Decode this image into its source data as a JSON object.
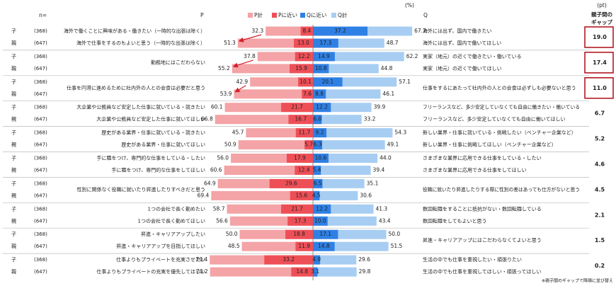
{
  "header": {
    "n_label": "n=",
    "p_label": "P",
    "unit": "(%)",
    "q_label": "Q",
    "gap_unit": "(pt)",
    "gap_label": [
      "親子間の",
      "ギャップ"
    ]
  },
  "legend": [
    {
      "name": "P計",
      "color": "#f4a3a6"
    },
    {
      "name": "Pに近い",
      "color": "#ee4f57"
    },
    {
      "name": "Qに近い",
      "color": "#2f80e4"
    },
    {
      "name": "Q計",
      "color": "#a7cdf2"
    }
  ],
  "groups": [
    {
      "gap": "19.0",
      "boxed": true,
      "rows": [
        {
          "role": "子",
          "n": "(368)",
          "p": "海外で働くことに興味がある・働きたい（一時的な出張は除く）",
          "q": "海外には出ず、国内で働きたい",
          "values": [
            32.3,
            8.4,
            37.2,
            67.7
          ]
        },
        {
          "role": "親",
          "n": "(647)",
          "p": "海外で仕事をするのもよいと思う（一時的な出張は除く）",
          "q": "海外には出ず、国内で働いてほしい",
          "values": [
            51.3,
            13,
            17.3,
            48.7
          ],
          "value_labels": [
            "51.3",
            "13.0",
            "17.3",
            "48.7"
          ]
        }
      ]
    },
    {
      "gap": "17.4",
      "boxed": true,
      "p": "勤務地にはこだわらない",
      "rows": [
        {
          "role": "子",
          "n": "(368)",
          "q": "実家（地元）の近くで働きたい・働いている",
          "values": [
            37.8,
            12.2,
            14.9,
            62.2
          ]
        },
        {
          "role": "親",
          "n": "(647)",
          "q": "実家（地元）の近くで働いてほしい",
          "values": [
            55.2,
            15.9,
            10.8,
            44.8
          ]
        }
      ]
    },
    {
      "gap": "11.0",
      "boxed": true,
      "p": "仕事を円滑に進めるために社内外の人との会食は必要だと思う",
      "q": "仕事をするにあたって社内外の人との会食は必ずしも必要ないと思う",
      "rows": [
        {
          "role": "子",
          "n": "(368)",
          "values": [
            42.9,
            10.1,
            20.1,
            57.1
          ]
        },
        {
          "role": "親",
          "n": "(647)",
          "values": [
            53.9,
            7.6,
            8.8,
            46.1
          ]
        }
      ]
    },
    {
      "gap": "6.7",
      "boxed": false,
      "rows": [
        {
          "role": "子",
          "n": "(368)",
          "p": "大企業や公務員など安定した仕事に就いている・就きたい",
          "q": "フリーランスなど、多少安定していなくても自由に働きたい・働いている",
          "values": [
            60.1,
            21.7,
            12.2,
            39.9
          ]
        },
        {
          "role": "親",
          "n": "(647)",
          "p": "大企業や公務員など安定した仕事に就いてほしい",
          "q": "フリーランスなど、多少安定していなくても自由に働いてほしい",
          "values": [
            66.8,
            16.7,
            6,
            33.2
          ],
          "value_labels": [
            "66.8",
            "16.7",
            "6.0",
            "33.2"
          ]
        }
      ]
    },
    {
      "gap": "5.2",
      "boxed": false,
      "rows": [
        {
          "role": "子",
          "n": "(368)",
          "p": "歴史がある業界・仕事に就いている・就きたい",
          "q": "新しい業界・仕事に就いている・挑戦したい（ベンチャー企業など）",
          "values": [
            45.7,
            11.7,
            9.2,
            54.3
          ]
        },
        {
          "role": "親",
          "n": "(647)",
          "p": "歴史がある業界・仕事に就いてほしい",
          "q": "新しい業界・仕事に挑戦してほしい（ベンチャー企業など）",
          "values": [
            50.9,
            5.7,
            6.3,
            49.1
          ]
        }
      ]
    },
    {
      "gap": "4.6",
      "boxed": false,
      "rows": [
        {
          "role": "子",
          "n": "(368)",
          "p": "手に職をつけ、専門的な仕事をしている・したい",
          "q": "さまざまな業界に応用できる仕事をしている・したい",
          "values": [
            56,
            17.9,
            10.6,
            44
          ],
          "value_labels": [
            "56.0",
            "17.9",
            "10.6",
            "44.0"
          ]
        },
        {
          "role": "親",
          "n": "(647)",
          "p": "手に職をつけ、専門的な仕事をしてほしい",
          "q": "さまざまな業界に応用できる仕事をしてほしい",
          "values": [
            60.6,
            12.4,
            5.4,
            39.4
          ]
        }
      ]
    },
    {
      "gap": "4.5",
      "boxed": false,
      "p": "性別に関係なく役職に就いたり昇進したりすべきだと思う",
      "q": "役職に就いたり昇進したりする際に性別の差はあっても仕方がないと思う",
      "rows": [
        {
          "role": "子",
          "n": "(368)",
          "values": [
            64.9,
            29.6,
            6.5,
            35.1
          ]
        },
        {
          "role": "親",
          "n": "(647)",
          "values": [
            69.4,
            15.6,
            4.5,
            30.6
          ]
        }
      ]
    },
    {
      "gap": "2.1",
      "boxed": false,
      "rows": [
        {
          "role": "子",
          "n": "(368)",
          "p": "1つの会社で長く勤めたい",
          "q": "数回転職をすることに抵抗がない・数回転職している",
          "values": [
            58.7,
            21.7,
            12.2,
            41.3
          ]
        },
        {
          "role": "親",
          "n": "(647)",
          "p": "1つの会社で長く勤めてほしい",
          "q": "数回転職をしてもよいと思う",
          "values": [
            56.6,
            17.3,
            10,
            43.4
          ],
          "value_labels": [
            "56.6",
            "17.3",
            "10.0",
            "43.4"
          ]
        }
      ]
    },
    {
      "gap": "1.5",
      "boxed": false,
      "q": "昇進・キャリアアップにはこだわらなくてよいと思う",
      "rows": [
        {
          "role": "子",
          "n": "(368)",
          "p": "昇進・キャリアアップしたい",
          "values": [
            50,
            18.8,
            17.1,
            50
          ],
          "value_labels": [
            "50.0",
            "18.8",
            "17.1",
            "50.0"
          ]
        },
        {
          "role": "親",
          "n": "(647)",
          "p": "昇進・キャリアアップを目指してほしい",
          "values": [
            48.5,
            11.9,
            14.8,
            51.5
          ]
        }
      ]
    },
    {
      "gap": "0.2",
      "boxed": false,
      "rows": [
        {
          "role": "子",
          "n": "(368)",
          "p": "仕事よりもプライベートを充実させたい",
          "q": "生活の中でも仕事を重視したい・頑張りたい",
          "values": [
            70.4,
            33.2,
            4.9,
            29.6
          ]
        },
        {
          "role": "親",
          "n": "(647)",
          "p": "仕事よりもプライベートの充実を優先してほしい",
          "q": "生活の中でも仕事を重視してほしい・頑張ってほしい",
          "values": [
            70.2,
            14.8,
            3.1,
            29.8
          ]
        }
      ]
    }
  ],
  "footnote": "※親子間のギャップで降順に並び替え"
}
